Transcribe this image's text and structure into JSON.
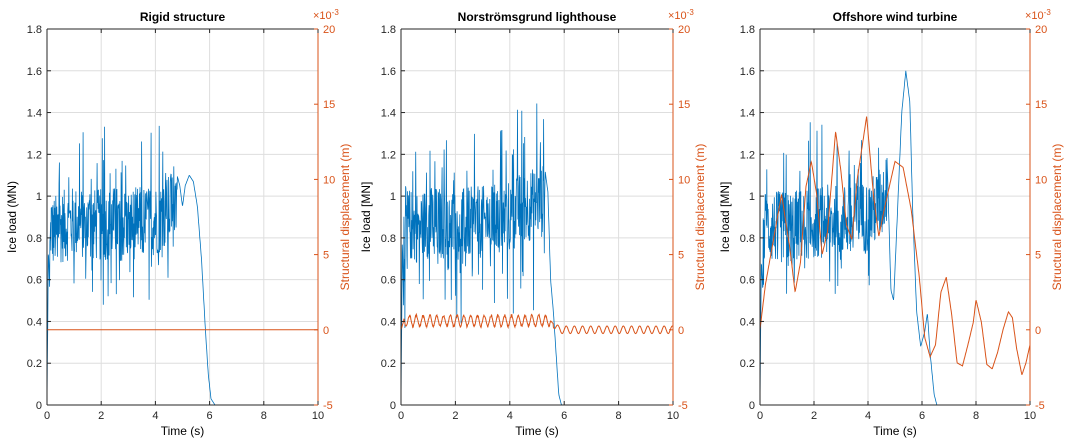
{
  "colors": {
    "load": "#0072bd",
    "displacement": "#d95319",
    "axis": "#262626",
    "grid": "#dedede"
  },
  "chart_data": [
    {
      "type": "line",
      "title": "Rigid structure",
      "xlabel": "Time (s)",
      "ylabel": "Ice load (MN)",
      "ylabel_right": "Structural displacement (m)",
      "right_exponent": "×10",
      "right_exponent_power": "-3",
      "xlim": [
        0,
        10
      ],
      "ylim": [
        0,
        1.8
      ],
      "ylim_right": [
        -5,
        20
      ],
      "x_ticks": [
        "0",
        "2",
        "4",
        "6",
        "8",
        "10"
      ],
      "y_ticks": [
        "0",
        "0.2",
        "0.4",
        "0.6",
        "0.8",
        "1",
        "1.2",
        "1.4",
        "1.6",
        "1.8"
      ],
      "y_ticks_right": [
        "-5",
        "0",
        "5",
        "10",
        "15",
        "20"
      ],
      "grid": true,
      "series": [
        {
          "axis": "left",
          "color": "#0072bd",
          "points": [
            [
              0,
              0
            ],
            [
              0.05,
              0.75
            ],
            [
              0.1,
              0.55
            ],
            [
              0.15,
              0.9
            ],
            [
              0.2,
              0.8
            ],
            [
              0.5,
              0.85
            ],
            [
              1.0,
              0.9
            ],
            [
              1.5,
              0.88
            ],
            [
              2.0,
              0.87
            ],
            [
              2.5,
              0.9
            ],
            [
              3.0,
              0.88
            ],
            [
              3.5,
              0.9
            ],
            [
              4.0,
              0.92
            ],
            [
              4.5,
              1.0
            ],
            [
              4.7,
              1.15
            ],
            [
              4.9,
              1.05
            ],
            [
              5.0,
              0.95
            ],
            [
              5.1,
              1.05
            ],
            [
              5.25,
              1.1
            ],
            [
              5.4,
              1.07
            ],
            [
              5.55,
              0.95
            ],
            [
              5.7,
              0.7
            ],
            [
              5.85,
              0.35
            ],
            [
              5.95,
              0.15
            ],
            [
              6.05,
              0.03
            ],
            [
              6.2,
              0
            ],
            [
              10,
              0
            ]
          ],
          "noise": {
            "from": 0.1,
            "to": 4.8,
            "base": 0.85,
            "amp_up": 0.4,
            "amp_down": 0.35
          }
        },
        {
          "axis": "right",
          "color": "#d95319",
          "points": [
            [
              0,
              0
            ],
            [
              10,
              0
            ]
          ]
        }
      ]
    },
    {
      "type": "line",
      "title": "Norströmsgrund lighthouse",
      "xlabel": "Time (s)",
      "ylabel": "Ice load [MN]",
      "ylabel_right": "Structural displacement (m)",
      "right_exponent": "×10",
      "right_exponent_power": "-3",
      "xlim": [
        0,
        10
      ],
      "ylim": [
        0,
        1.8
      ],
      "ylim_right": [
        -5,
        20
      ],
      "x_ticks": [
        "0",
        "2",
        "4",
        "6",
        "8",
        "10"
      ],
      "y_ticks": [
        "0",
        "0.2",
        "0.4",
        "0.6",
        "0.8",
        "1",
        "1.2",
        "1.4",
        "1.6",
        "1.8"
      ],
      "y_ticks_right": [
        "-5",
        "0",
        "5",
        "10",
        "15",
        "20"
      ],
      "grid": true,
      "series": [
        {
          "axis": "left",
          "color": "#0072bd",
          "points": [
            [
              0,
              0
            ],
            [
              0.05,
              0.8
            ],
            [
              0.1,
              0.45
            ],
            [
              0.15,
              0.9
            ],
            [
              0.5,
              0.85
            ],
            [
              1.0,
              0.9
            ],
            [
              2.0,
              0.88
            ],
            [
              3.0,
              0.9
            ],
            [
              4.0,
              0.95
            ],
            [
              4.5,
              1.05
            ],
            [
              5.0,
              1.08
            ],
            [
              5.2,
              1.1
            ],
            [
              5.3,
              1.12
            ],
            [
              5.4,
              1.02
            ],
            [
              5.5,
              0.6
            ],
            [
              5.6,
              0.45
            ],
            [
              5.7,
              0.25
            ],
            [
              5.8,
              0.05
            ],
            [
              5.9,
              0
            ],
            [
              10,
              0
            ]
          ],
          "noise": {
            "from": 0.1,
            "to": 5.3,
            "base": 0.85,
            "amp_up": 0.45,
            "amp_down": 0.4
          }
        },
        {
          "axis": "right",
          "color": "#d95319",
          "points": [
            [
              0,
              0
            ],
            [
              0.1,
              0.6
            ],
            [
              5.5,
              0.6
            ],
            [
              5.8,
              0
            ],
            [
              10,
              0
            ]
          ],
          "oscillation": {
            "from": 0.1,
            "to": 5.5,
            "amp": 0.45,
            "period": 0.25
          },
          "ringdown": {
            "from": 5.6,
            "to": 10,
            "amp": 0.25,
            "period": 0.3
          }
        }
      ]
    },
    {
      "type": "line",
      "title": "Offshore wind turbine",
      "xlabel": "Time (s)",
      "ylabel": "Ice load [MN]",
      "ylabel_right": "Structural displacement (m)",
      "right_exponent": "×10",
      "right_exponent_power": "-3",
      "xlim": [
        0,
        10
      ],
      "ylim": [
        0,
        1.8
      ],
      "ylim_right": [
        -5,
        20
      ],
      "x_ticks": [
        "0",
        "2",
        "4",
        "6",
        "8",
        "10"
      ],
      "y_ticks": [
        "0",
        "0.2",
        "0.4",
        "0.6",
        "0.8",
        "1",
        "1.2",
        "1.4",
        "1.6",
        "1.8"
      ],
      "y_ticks_right": [
        "-5",
        "0",
        "5",
        "10",
        "15",
        "20"
      ],
      "grid": true,
      "series": [
        {
          "axis": "left",
          "color": "#0072bd",
          "points": [
            [
              0,
              0
            ],
            [
              0.05,
              0.7
            ],
            [
              0.1,
              0.55
            ],
            [
              0.2,
              0.85
            ],
            [
              1.0,
              0.85
            ],
            [
              2.0,
              0.9
            ],
            [
              3.0,
              0.92
            ],
            [
              4.0,
              0.95
            ],
            [
              4.5,
              1.1
            ],
            [
              4.7,
              1.2
            ],
            [
              4.85,
              0.55
            ],
            [
              4.95,
              0.5
            ],
            [
              5.1,
              0.95
            ],
            [
              5.25,
              1.4
            ],
            [
              5.4,
              1.6
            ],
            [
              5.55,
              1.45
            ],
            [
              5.65,
              0.95
            ],
            [
              5.8,
              0.45
            ],
            [
              5.95,
              0.28
            ],
            [
              6.1,
              0.35
            ],
            [
              6.2,
              0.44
            ],
            [
              6.3,
              0.25
            ],
            [
              6.45,
              0.05
            ],
            [
              6.55,
              0
            ],
            [
              10,
              0
            ]
          ],
          "noise": {
            "from": 0.1,
            "to": 4.7,
            "base": 0.85,
            "amp_up": 0.35,
            "amp_down": 0.3
          }
        },
        {
          "axis": "right",
          "color": "#d95319",
          "points": [
            [
              0,
              0
            ],
            [
              0.2,
              3
            ],
            [
              0.5,
              6
            ],
            [
              0.8,
              9
            ],
            [
              1.1,
              5.5
            ],
            [
              1.3,
              2.5
            ],
            [
              1.5,
              4.5
            ],
            [
              1.7,
              9.5
            ],
            [
              1.9,
              11.2
            ],
            [
              2.1,
              9
            ],
            [
              2.3,
              5
            ],
            [
              2.5,
              6.5
            ],
            [
              2.8,
              13.2
            ],
            [
              3.0,
              10.5
            ],
            [
              3.2,
              7
            ],
            [
              3.4,
              6
            ],
            [
              3.6,
              10
            ],
            [
              3.95,
              14.2
            ],
            [
              4.2,
              9
            ],
            [
              4.4,
              6.2
            ],
            [
              4.6,
              8
            ],
            [
              5.0,
              11.2
            ],
            [
              5.3,
              10.8
            ],
            [
              5.6,
              8
            ],
            [
              5.9,
              3.5
            ],
            [
              6.1,
              -0.5
            ],
            [
              6.3,
              -1.8
            ],
            [
              6.5,
              -1
            ],
            [
              6.7,
              2.5
            ],
            [
              6.9,
              3.5
            ],
            [
              7.1,
              1
            ],
            [
              7.3,
              -2.2
            ],
            [
              7.5,
              -2.4
            ],
            [
              7.7,
              -1
            ],
            [
              7.9,
              0.5
            ],
            [
              8.0,
              2
            ],
            [
              8.2,
              0.5
            ],
            [
              8.4,
              -2.3
            ],
            [
              8.6,
              -2.6
            ],
            [
              8.8,
              -1.5
            ],
            [
              9.0,
              0
            ],
            [
              9.2,
              1.2
            ],
            [
              9.35,
              0.8
            ],
            [
              9.5,
              -1.2
            ],
            [
              9.7,
              -3
            ],
            [
              9.85,
              -2.2
            ],
            [
              10,
              -1
            ]
          ]
        }
      ]
    }
  ]
}
